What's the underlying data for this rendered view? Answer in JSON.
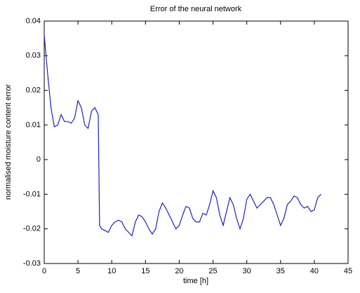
{
  "chart_data": {
    "type": "line",
    "title": "Error of the neural network",
    "xlabel": "time [h]",
    "ylabel": "normalised moisture content error",
    "x": [
      0,
      0.5,
      1,
      1.5,
      2,
      2.5,
      3,
      3.5,
      4,
      4.5,
      5,
      5.5,
      6,
      6.5,
      7,
      7.5,
      8,
      8.2,
      8.5,
      9,
      9.5,
      10,
      10.5,
      11,
      11.5,
      12,
      12.5,
      13,
      13.5,
      14,
      14.5,
      15,
      15.5,
      16,
      16.5,
      17,
      17.5,
      18,
      18.5,
      19,
      19.5,
      20,
      20.5,
      21,
      21.5,
      22,
      22.5,
      23,
      23.5,
      24,
      24.5,
      25,
      25.5,
      26,
      26.5,
      27,
      27.5,
      28,
      28.5,
      29,
      29.5,
      30,
      30.5,
      31,
      31.5,
      32,
      32.5,
      33,
      33.5,
      34,
      34.5,
      35,
      35.5,
      36,
      36.5,
      37,
      37.5,
      38,
      38.5,
      39,
      39.5,
      40,
      40.5,
      41
    ],
    "values": [
      0.036,
      0.025,
      0.015,
      0.0095,
      0.01,
      0.013,
      0.011,
      0.011,
      0.0105,
      0.012,
      0.017,
      0.015,
      0.01,
      0.009,
      0.014,
      0.015,
      0.013,
      -0.019,
      -0.02,
      -0.0205,
      -0.021,
      -0.019,
      -0.018,
      -0.0175,
      -0.018,
      -0.02,
      -0.021,
      -0.022,
      -0.018,
      -0.016,
      -0.0165,
      -0.018,
      -0.02,
      -0.0215,
      -0.02,
      -0.015,
      -0.0125,
      -0.014,
      -0.016,
      -0.018,
      -0.02,
      -0.019,
      -0.016,
      -0.0135,
      -0.014,
      -0.017,
      -0.018,
      -0.018,
      -0.0155,
      -0.016,
      -0.013,
      -0.009,
      -0.011,
      -0.016,
      -0.019,
      -0.015,
      -0.011,
      -0.013,
      -0.017,
      -0.02,
      -0.017,
      -0.0115,
      -0.01,
      -0.012,
      -0.014,
      -0.013,
      -0.012,
      -0.011,
      -0.011,
      -0.013,
      -0.016,
      -0.019,
      -0.017,
      -0.013,
      -0.012,
      -0.0105,
      -0.011,
      -0.013,
      -0.014,
      -0.0135,
      -0.015,
      -0.0145,
      -0.011,
      -0.01
    ],
    "color": "#2020c0",
    "xlim": [
      0,
      45
    ],
    "xticks": [
      0,
      5,
      10,
      15,
      20,
      25,
      30,
      35,
      40,
      45
    ],
    "ylim": [
      -0.03,
      0.04
    ],
    "yticks": [
      -0.03,
      -0.02,
      -0.01,
      0,
      0.01,
      0.02,
      0.03,
      0.04
    ],
    "grid": false
  }
}
